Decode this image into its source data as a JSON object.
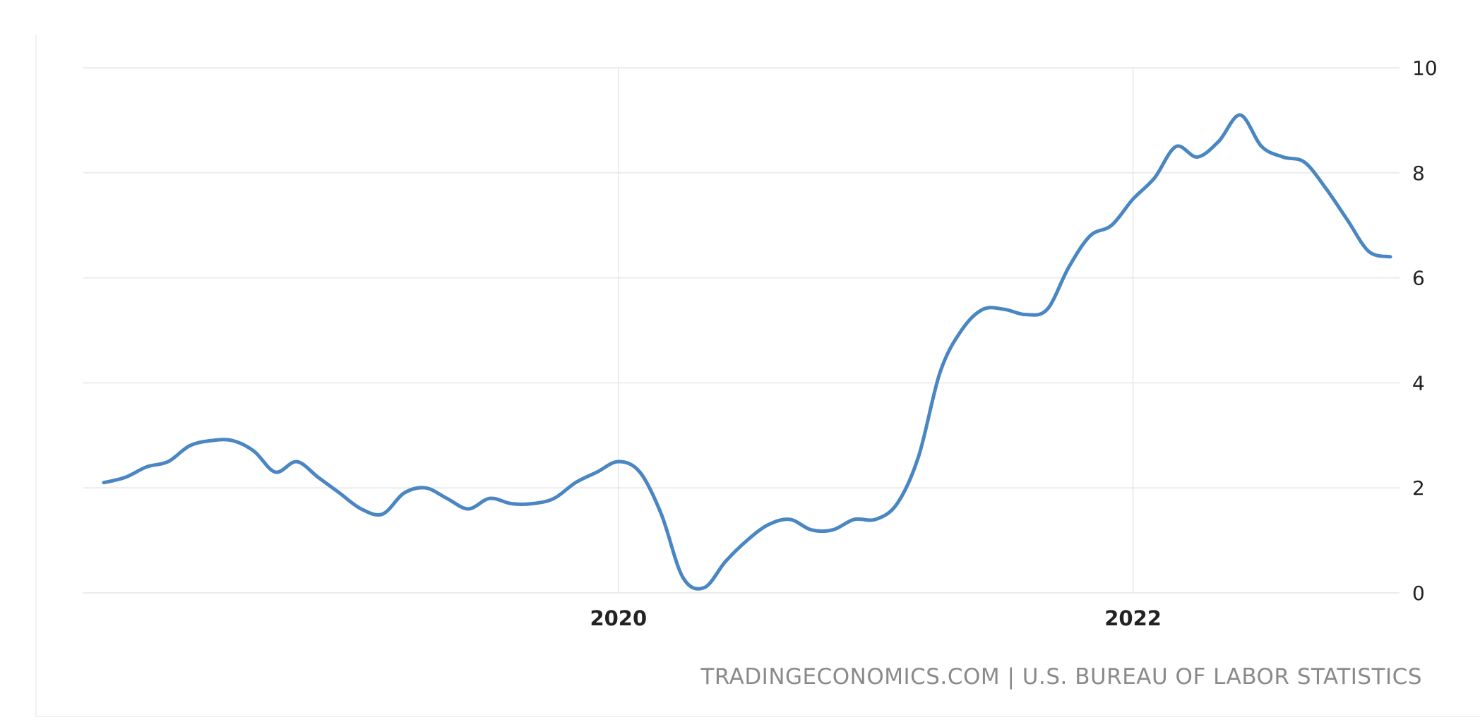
{
  "chart_data": {
    "type": "line",
    "title": "",
    "xlabel": "",
    "ylabel": "",
    "x_start": "2018-01",
    "x_end": "2023-01",
    "xlim": [
      "2018-01",
      "2023-01"
    ],
    "ylim": [
      0,
      10
    ],
    "y_ticks": [
      "0",
      "2",
      "4",
      "6",
      "8",
      "10"
    ],
    "x_ticks": [
      {
        "label": "2020",
        "date": "2020-01"
      },
      {
        "label": "2022",
        "date": "2022-01"
      }
    ],
    "y_axis_side": "right",
    "grid": true,
    "legend": "none",
    "series": [
      {
        "color": "#4a86c1",
        "x": [
          "2018-01",
          "2018-02",
          "2018-03",
          "2018-04",
          "2018-05",
          "2018-06",
          "2018-07",
          "2018-08",
          "2018-09",
          "2018-10",
          "2018-11",
          "2018-12",
          "2019-01",
          "2019-02",
          "2019-03",
          "2019-04",
          "2019-05",
          "2019-06",
          "2019-07",
          "2019-08",
          "2019-09",
          "2019-10",
          "2019-11",
          "2019-12",
          "2020-01",
          "2020-02",
          "2020-03",
          "2020-04",
          "2020-05",
          "2020-06",
          "2020-07",
          "2020-08",
          "2020-09",
          "2020-10",
          "2020-11",
          "2020-12",
          "2021-01",
          "2021-02",
          "2021-03",
          "2021-04",
          "2021-05",
          "2021-06",
          "2021-07",
          "2021-08",
          "2021-09",
          "2021-10",
          "2021-11",
          "2021-12",
          "2022-01",
          "2022-02",
          "2022-03",
          "2022-04",
          "2022-05",
          "2022-06",
          "2022-07",
          "2022-08",
          "2022-09",
          "2022-10",
          "2022-11",
          "2022-12",
          "2023-01"
        ],
        "values": [
          2.1,
          2.2,
          2.4,
          2.5,
          2.8,
          2.9,
          2.9,
          2.7,
          2.3,
          2.5,
          2.2,
          1.9,
          1.6,
          1.5,
          1.9,
          2.0,
          1.8,
          1.6,
          1.8,
          1.7,
          1.7,
          1.8,
          2.1,
          2.3,
          2.5,
          2.3,
          1.5,
          0.3,
          0.1,
          0.6,
          1.0,
          1.3,
          1.4,
          1.2,
          1.2,
          1.4,
          1.4,
          1.7,
          2.6,
          4.2,
          5.0,
          5.4,
          5.4,
          5.3,
          5.4,
          6.2,
          6.8,
          7.0,
          7.5,
          7.9,
          8.5,
          8.3,
          8.6,
          9.1,
          8.5,
          8.3,
          8.2,
          7.7,
          7.1,
          6.5,
          6.4
        ]
      }
    ]
  },
  "source_note": "TRADINGECONOMICS.COM | U.S. BUREAU OF LABOR STATISTICS"
}
